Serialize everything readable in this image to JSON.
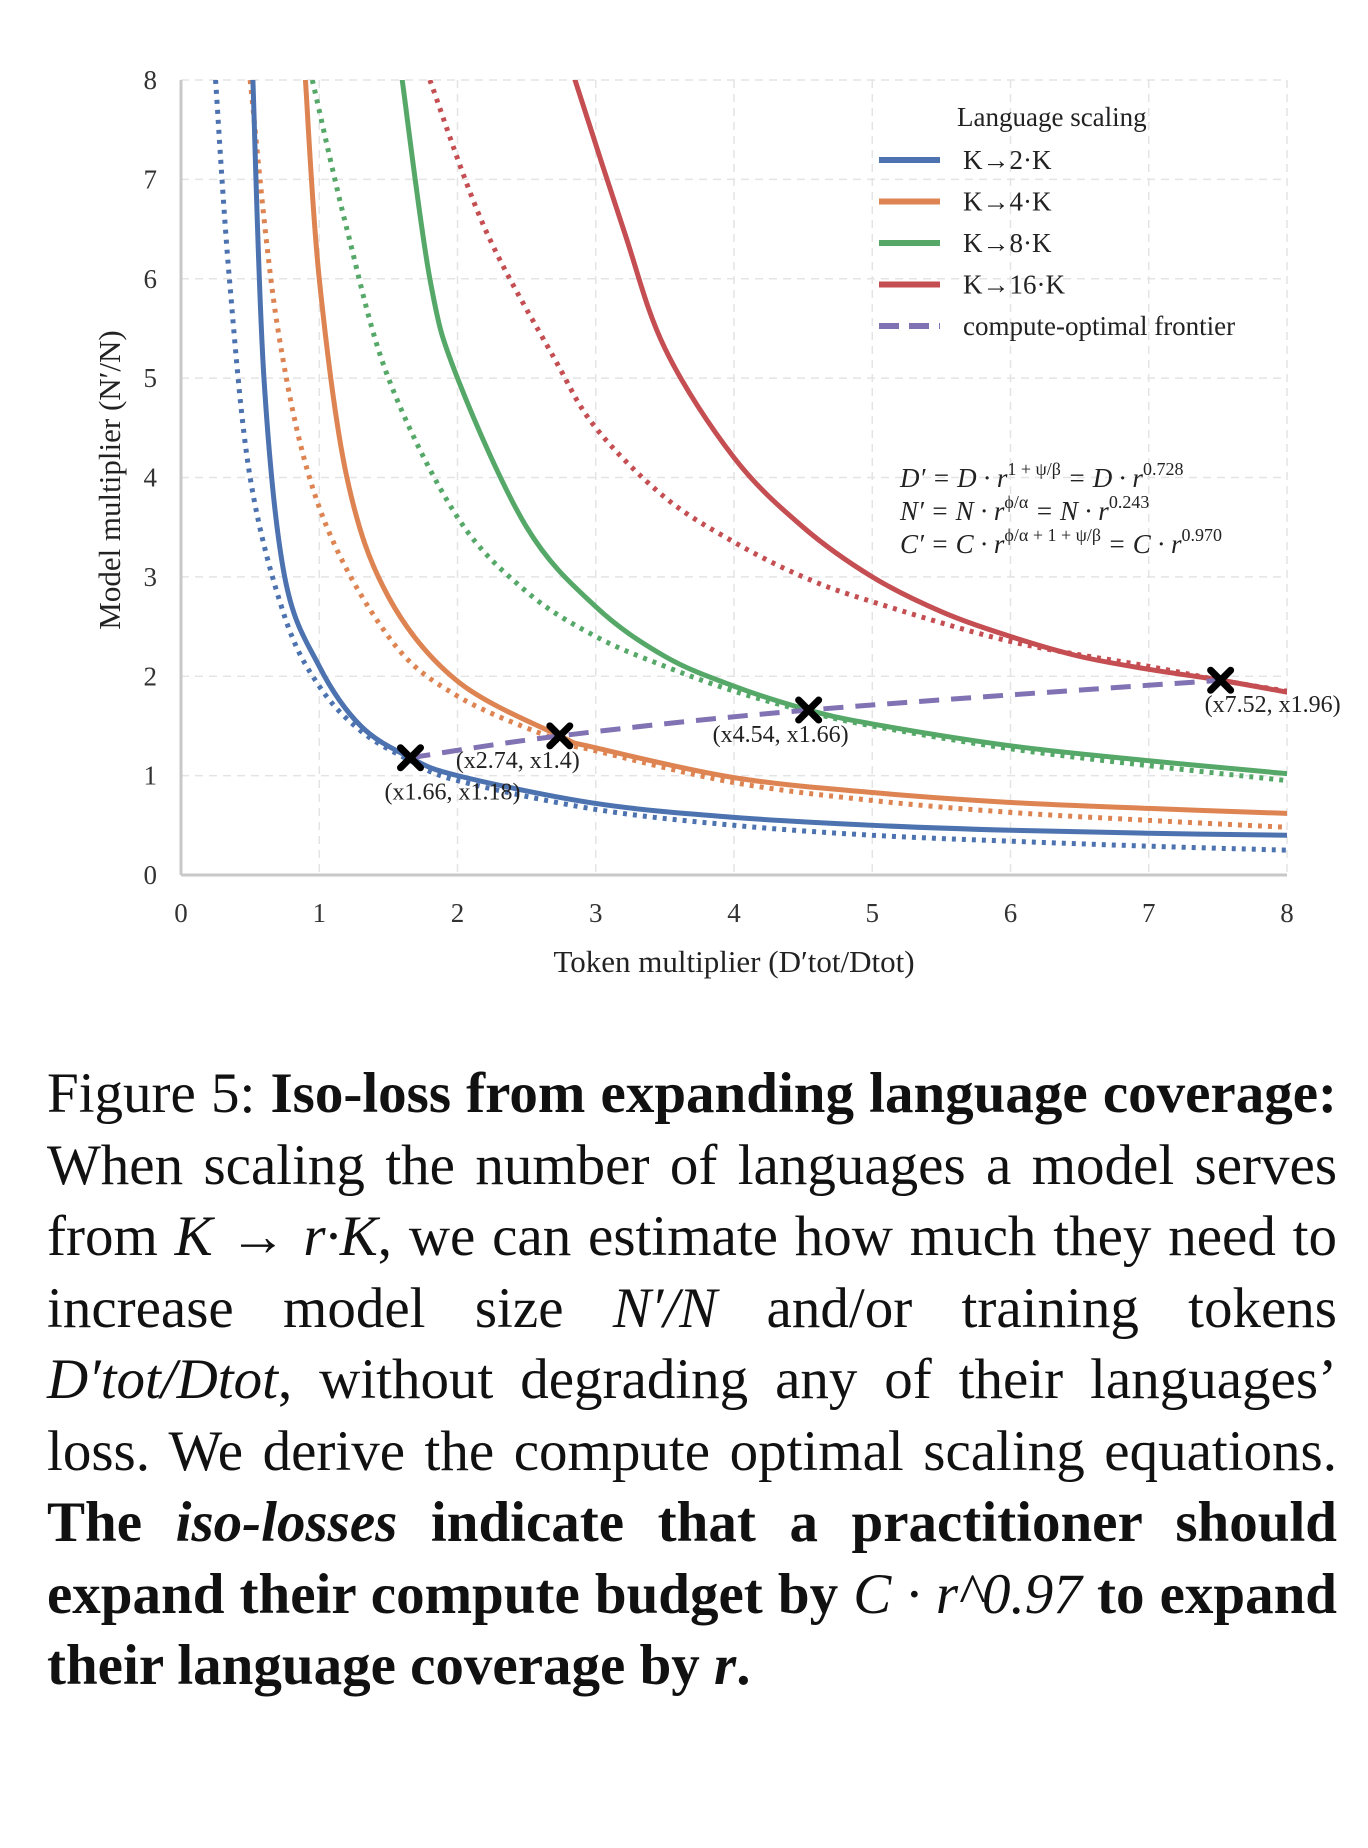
{
  "chart_data": {
    "type": "line",
    "title": "",
    "xlabel": "Token multiplier  (D′tot/Dtot)",
    "ylabel": "Model multiplier  (N′/N)",
    "xlim": [
      0,
      8
    ],
    "ylim": [
      0,
      8
    ],
    "xticks": [
      "0",
      "1",
      "2",
      "3",
      "4",
      "5",
      "6",
      "7",
      "8"
    ],
    "yticks": [
      "0",
      "1",
      "2",
      "3",
      "4",
      "5",
      "6",
      "7",
      "8"
    ],
    "grid": true,
    "legend": {
      "title": "Language scaling",
      "placement": "top-right"
    },
    "series": [
      {
        "name": "K→2·K",
        "color": "#4c72b0",
        "style": "solid",
        "points": [
          [
            0.52,
            8
          ],
          [
            0.6,
            5
          ],
          [
            0.75,
            3
          ],
          [
            1,
            2.1
          ],
          [
            1.3,
            1.5
          ],
          [
            1.66,
            1.18
          ],
          [
            2,
            1.0
          ],
          [
            3,
            0.72
          ],
          [
            4,
            0.58
          ],
          [
            5,
            0.5
          ],
          [
            6,
            0.45
          ],
          [
            7,
            0.42
          ],
          [
            8,
            0.4
          ]
        ]
      },
      {
        "name": "K→2·K (dotted)",
        "color": "#4c72b0",
        "style": "dotted",
        "points": [
          [
            0.25,
            8
          ],
          [
            0.35,
            6
          ],
          [
            0.5,
            4
          ],
          [
            0.75,
            2.6
          ],
          [
            1,
            1.9
          ],
          [
            1.3,
            1.45
          ],
          [
            1.66,
            1.15
          ],
          [
            2,
            0.95
          ],
          [
            3,
            0.66
          ],
          [
            4,
            0.5
          ],
          [
            5,
            0.4
          ],
          [
            6,
            0.34
          ],
          [
            7,
            0.29
          ],
          [
            8,
            0.25
          ]
        ]
      },
      {
        "name": "K→4·K",
        "color": "#dd8452",
        "style": "solid",
        "points": [
          [
            0.9,
            8
          ],
          [
            1,
            6
          ],
          [
            1.2,
            4
          ],
          [
            1.5,
            2.8
          ],
          [
            2,
            1.95
          ],
          [
            2.74,
            1.4
          ],
          [
            3,
            1.28
          ],
          [
            4,
            0.98
          ],
          [
            5,
            0.83
          ],
          [
            6,
            0.73
          ],
          [
            7,
            0.67
          ],
          [
            8,
            0.62
          ]
        ]
      },
      {
        "name": "K→4·K (dotted)",
        "color": "#dd8452",
        "style": "dotted",
        "points": [
          [
            0.5,
            8
          ],
          [
            0.7,
            5.5
          ],
          [
            1,
            3.7
          ],
          [
            1.5,
            2.4
          ],
          [
            2,
            1.8
          ],
          [
            2.74,
            1.35
          ],
          [
            3,
            1.25
          ],
          [
            4,
            0.93
          ],
          [
            5,
            0.75
          ],
          [
            6,
            0.63
          ],
          [
            7,
            0.55
          ],
          [
            8,
            0.48
          ]
        ]
      },
      {
        "name": "K→8·K",
        "color": "#55a868",
        "style": "solid",
        "points": [
          [
            1.6,
            8
          ],
          [
            1.8,
            6
          ],
          [
            2,
            5
          ],
          [
            2.5,
            3.5
          ],
          [
            3,
            2.7
          ],
          [
            3.5,
            2.2
          ],
          [
            4,
            1.9
          ],
          [
            4.54,
            1.66
          ],
          [
            5,
            1.52
          ],
          [
            6,
            1.3
          ],
          [
            7,
            1.15
          ],
          [
            8,
            1.02
          ]
        ]
      },
      {
        "name": "K→8·K (dotted)",
        "color": "#55a868",
        "style": "dotted",
        "points": [
          [
            0.95,
            8
          ],
          [
            1.2,
            6.5
          ],
          [
            1.5,
            5
          ],
          [
            2,
            3.6
          ],
          [
            2.5,
            2.85
          ],
          [
            3,
            2.4
          ],
          [
            3.5,
            2.1
          ],
          [
            4,
            1.85
          ],
          [
            4.54,
            1.64
          ],
          [
            5,
            1.5
          ],
          [
            6,
            1.27
          ],
          [
            7,
            1.1
          ],
          [
            8,
            0.95
          ]
        ]
      },
      {
        "name": "K→16·K",
        "color": "#c44e52",
        "style": "solid",
        "points": [
          [
            2.85,
            8
          ],
          [
            3.2,
            6.5
          ],
          [
            3.5,
            5.3
          ],
          [
            4,
            4.2
          ],
          [
            4.5,
            3.5
          ],
          [
            5,
            3.0
          ],
          [
            5.5,
            2.65
          ],
          [
            6,
            2.4
          ],
          [
            6.5,
            2.2
          ],
          [
            7,
            2.07
          ],
          [
            7.52,
            1.96
          ],
          [
            8,
            1.84
          ]
        ]
      },
      {
        "name": "K→16·K (dotted)",
        "color": "#c44e52",
        "style": "dotted",
        "points": [
          [
            1.8,
            8
          ],
          [
            2.2,
            6.5
          ],
          [
            2.7,
            5.2
          ],
          [
            3,
            4.5
          ],
          [
            3.5,
            3.8
          ],
          [
            4,
            3.35
          ],
          [
            4.5,
            3.0
          ],
          [
            5,
            2.75
          ],
          [
            6,
            2.35
          ],
          [
            7,
            2.1
          ],
          [
            7.52,
            1.96
          ],
          [
            8,
            1.85
          ]
        ]
      },
      {
        "name": "compute-optimal frontier",
        "color": "#8172b3",
        "style": "dashed",
        "points": [
          [
            1.66,
            1.18
          ],
          [
            2.74,
            1.4
          ],
          [
            4.54,
            1.66
          ],
          [
            7.52,
            1.96
          ]
        ]
      }
    ],
    "legend_entries": [
      {
        "label": "K→2·K",
        "color": "#4c72b0",
        "style": "solid"
      },
      {
        "label": "K→4·K",
        "color": "#dd8452",
        "style": "solid"
      },
      {
        "label": "K→8·K",
        "color": "#55a868",
        "style": "solid"
      },
      {
        "label": "K→16·K",
        "color": "#c44e52",
        "style": "solid"
      },
      {
        "label": "compute-optimal frontier",
        "color": "#8172b3",
        "style": "dashed"
      }
    ],
    "markers": [
      {
        "x": 1.66,
        "y": 1.18,
        "label": "(x1.66, x1.18)"
      },
      {
        "x": 2.74,
        "y": 1.4,
        "label": "(x2.74, x1.4)"
      },
      {
        "x": 4.54,
        "y": 1.66,
        "label": "(x4.54, x1.66)"
      },
      {
        "x": 7.52,
        "y": 1.96,
        "label": "(x7.52, x1.96)"
      }
    ],
    "equations": [
      {
        "a": "D′ = D · r",
        "sa": "1 + ψ/β",
        "b": " = D · r",
        "sb": "0.728"
      },
      {
        "a": "N′ = N · r",
        "sa": "ϕ/α",
        "b": "  = N · r",
        "sb": "0.243"
      },
      {
        "a": "C′ = C · r",
        "sa": "ϕ/α + 1 + ψ/β",
        "b": " = C · r",
        "sb": "0.970"
      }
    ]
  },
  "caption": [
    {
      "s": "n",
      "t": "Figure 5: "
    },
    {
      "s": "b",
      "t": "Iso-loss from expanding language coverage: "
    },
    {
      "s": "n",
      "t": "When scaling the number of languages a model serves from "
    },
    {
      "s": "i",
      "t": "K → r·K"
    },
    {
      "s": "n",
      "t": ", we can estimate how much they need to increase model size "
    },
    {
      "s": "i",
      "t": "N′/N"
    },
    {
      "s": "n",
      "t": " and/or training tokens "
    },
    {
      "s": "i",
      "t": "D′tot/Dtot"
    },
    {
      "s": "n",
      "t": ", without degrading any of their languages’ loss. We derive the compute optimal scaling equations. "
    },
    {
      "s": "b",
      "t": "The "
    },
    {
      "s": "bi",
      "t": "iso-losses"
    },
    {
      "s": "b",
      "t": " indicate that a practitioner should expand their compute budget by "
    },
    {
      "s": "i",
      "t": "C · r^0.97"
    },
    {
      "s": "b",
      "t": " to expand their language coverage by "
    },
    {
      "s": "bi",
      "t": "r"
    },
    {
      "s": "b",
      "t": "."
    }
  ]
}
